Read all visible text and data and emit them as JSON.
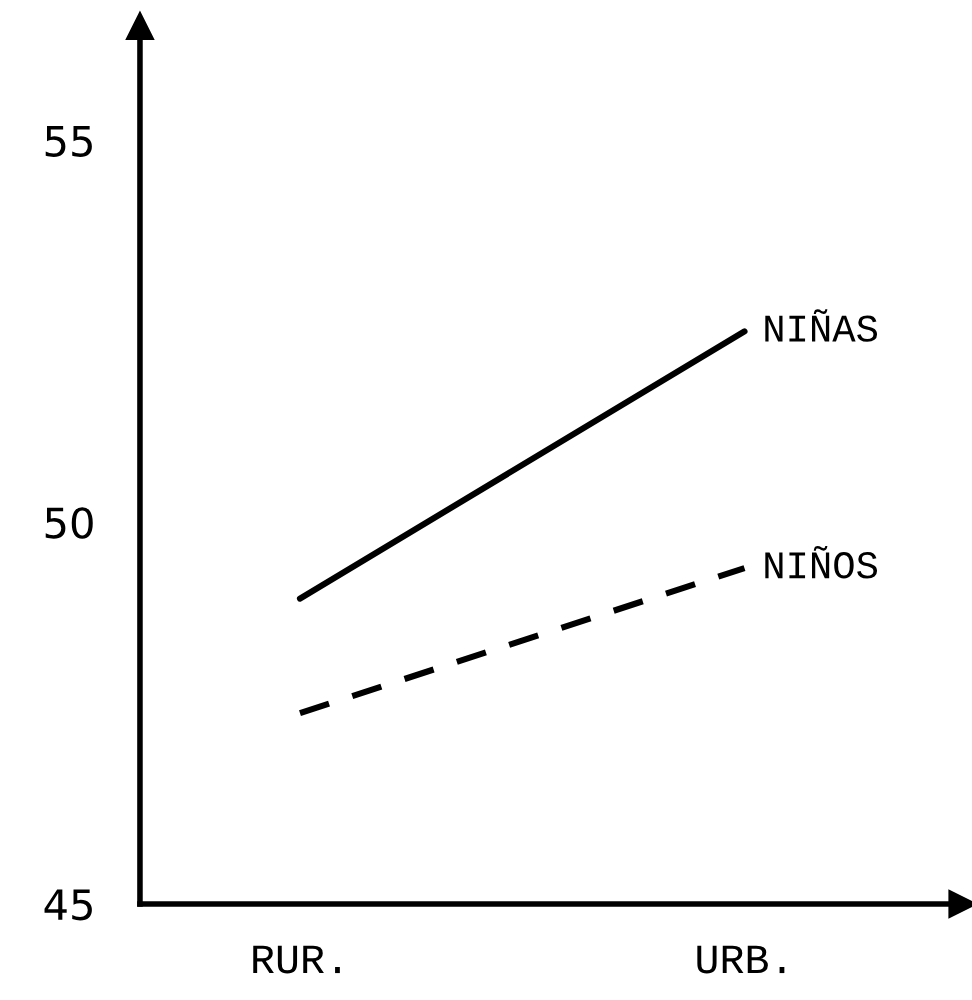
{
  "chart_data": {
    "type": "line",
    "categories": [
      "RUR.",
      "URB."
    ],
    "series": [
      {
        "name": "NIÑAS",
        "color": "#000000",
        "values": [
          49.0,
          52.5
        ],
        "line_style": "solid"
      },
      {
        "name": "NIÑOS",
        "color": "#000000",
        "values": [
          47.5,
          49.4
        ],
        "line_style": "dashed"
      }
    ],
    "ylim": [
      45,
      56.5
    ],
    "yticks": [
      45,
      50,
      55
    ],
    "grid": false,
    "legend": false,
    "marker": "none"
  }
}
